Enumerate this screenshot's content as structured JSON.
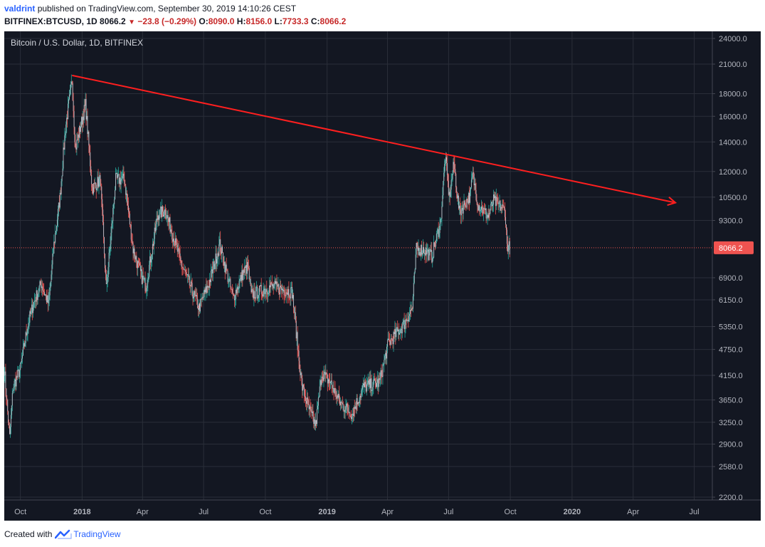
{
  "header": {
    "author": "valdrint",
    "published_text": "published on TradingView.com, September 30, 2019 14:10:26 CEST",
    "symbol": "BITFINEX:BTCUSD, 1D",
    "last": "8066.2",
    "change": "−23.8 (−0.29%)",
    "open_label": "O:",
    "open": "8090.0",
    "high_label": "H:",
    "high": "8156.0",
    "low_label": "L:",
    "low": "7733.3",
    "close_label": "C:",
    "close": "8066.2"
  },
  "footer": {
    "created_with": "Created with",
    "brand": "TradingView"
  },
  "colors": {
    "background": "#131722",
    "grid": "#2a2e39",
    "up": "#26a69a",
    "down": "#ef5350",
    "body_gray": "#b2b5be",
    "trendline": "#ff1f1f",
    "price_line": "#ef5350",
    "axis_text": "#b2b5be"
  },
  "chart_data": {
    "type": "candlestick",
    "title": "Bitcoin / U.S. Dollar, 1D, BITFINEX",
    "y_scale": "log",
    "ylim": [
      2200,
      24000
    ],
    "x_range": [
      "2017-09-07",
      "2020-07-28"
    ],
    "y_ticks": [
      "24000.0",
      "21000.0",
      "18000.0",
      "16000.0",
      "14000.0",
      "12000.0",
      "10500.0",
      "9300.0",
      "6900.0",
      "6150.0",
      "5350.0",
      "4750.0",
      "4150.0",
      "3650.0",
      "3250.0",
      "2900.0",
      "2580.0",
      "2200.0"
    ],
    "x_ticks": [
      {
        "label": "Oct",
        "date": "2017-10-01",
        "bold": false
      },
      {
        "label": "2018",
        "date": "2018-01-01",
        "bold": true
      },
      {
        "label": "Apr",
        "date": "2018-04-01",
        "bold": false
      },
      {
        "label": "Jul",
        "date": "2018-07-01",
        "bold": false
      },
      {
        "label": "Oct",
        "date": "2018-10-01",
        "bold": false
      },
      {
        "label": "2019",
        "date": "2019-01-01",
        "bold": true
      },
      {
        "label": "Apr",
        "date": "2019-04-01",
        "bold": false
      },
      {
        "label": "Jul",
        "date": "2019-07-01",
        "bold": false
      },
      {
        "label": "Oct",
        "date": "2019-10-01",
        "bold": false
      },
      {
        "label": "2020",
        "date": "2020-01-01",
        "bold": true
      },
      {
        "label": "Apr",
        "date": "2020-04-01",
        "bold": false
      },
      {
        "label": "Jul",
        "date": "2020-07-01",
        "bold": false
      }
    ],
    "last_price": 8066.2,
    "last_price_label": "8066.2",
    "trendline": {
      "start": {
        "date": "2017-12-17",
        "price": 19800
      },
      "end": {
        "date": "2020-06-03",
        "price": 10200
      }
    },
    "price_anchors": [
      [
        "2017-09-07",
        4300
      ],
      [
        "2017-09-15",
        3000
      ],
      [
        "2017-09-20",
        3900
      ],
      [
        "2017-10-01",
        4300
      ],
      [
        "2017-10-12",
        5400
      ],
      [
        "2017-10-20",
        6000
      ],
      [
        "2017-11-01",
        6700
      ],
      [
        "2017-11-12",
        6000
      ],
      [
        "2017-11-20",
        8200
      ],
      [
        "2017-11-29",
        10500
      ],
      [
        "2017-12-07",
        15000
      ],
      [
        "2017-12-17",
        19300
      ],
      [
        "2017-12-22",
        13500
      ],
      [
        "2018-01-06",
        17000
      ],
      [
        "2018-01-16",
        11000
      ],
      [
        "2018-01-28",
        11500
      ],
      [
        "2018-02-06",
        6500
      ],
      [
        "2018-02-20",
        11500
      ],
      [
        "2018-03-05",
        11500
      ],
      [
        "2018-03-18",
        8000
      ],
      [
        "2018-03-31",
        6900
      ],
      [
        "2018-04-06",
        6600
      ],
      [
        "2018-04-24",
        9600
      ],
      [
        "2018-05-05",
        9800
      ],
      [
        "2018-05-29",
        7400
      ],
      [
        "2018-06-24",
        5900
      ],
      [
        "2018-07-09",
        6700
      ],
      [
        "2018-07-25",
        8200
      ],
      [
        "2018-08-14",
        6200
      ],
      [
        "2018-08-29",
        7100
      ],
      [
        "2018-09-05",
        7300
      ],
      [
        "2018-09-10",
        6300
      ],
      [
        "2018-10-10",
        6600
      ],
      [
        "2018-11-10",
        6400
      ],
      [
        "2018-11-14",
        5600
      ],
      [
        "2018-11-20",
        4500
      ],
      [
        "2018-11-25",
        3900
      ],
      [
        "2018-12-07",
        3400
      ],
      [
        "2018-12-15",
        3200
      ],
      [
        "2018-12-24",
        4200
      ],
      [
        "2019-01-06",
        4000
      ],
      [
        "2019-01-20",
        3600
      ],
      [
        "2019-02-07",
        3400
      ],
      [
        "2019-02-24",
        3900
      ],
      [
        "2019-03-20",
        4000
      ],
      [
        "2019-04-02",
        4900
      ],
      [
        "2019-04-25",
        5400
      ],
      [
        "2019-05-08",
        5900
      ],
      [
        "2019-05-14",
        8000
      ],
      [
        "2019-05-25",
        8000
      ],
      [
        "2019-06-06",
        7700
      ],
      [
        "2019-06-19",
        9200
      ],
      [
        "2019-06-26",
        13000
      ],
      [
        "2019-07-02",
        10500
      ],
      [
        "2019-07-09",
        12500
      ],
      [
        "2019-07-17",
        9700
      ],
      [
        "2019-08-02",
        10600
      ],
      [
        "2019-08-06",
        11800
      ],
      [
        "2019-08-14",
        10100
      ],
      [
        "2019-08-29",
        9500
      ],
      [
        "2019-09-06",
        10300
      ],
      [
        "2019-09-23",
        9800
      ],
      [
        "2019-09-26",
        8200
      ],
      [
        "2019-09-30",
        8066
      ]
    ]
  }
}
